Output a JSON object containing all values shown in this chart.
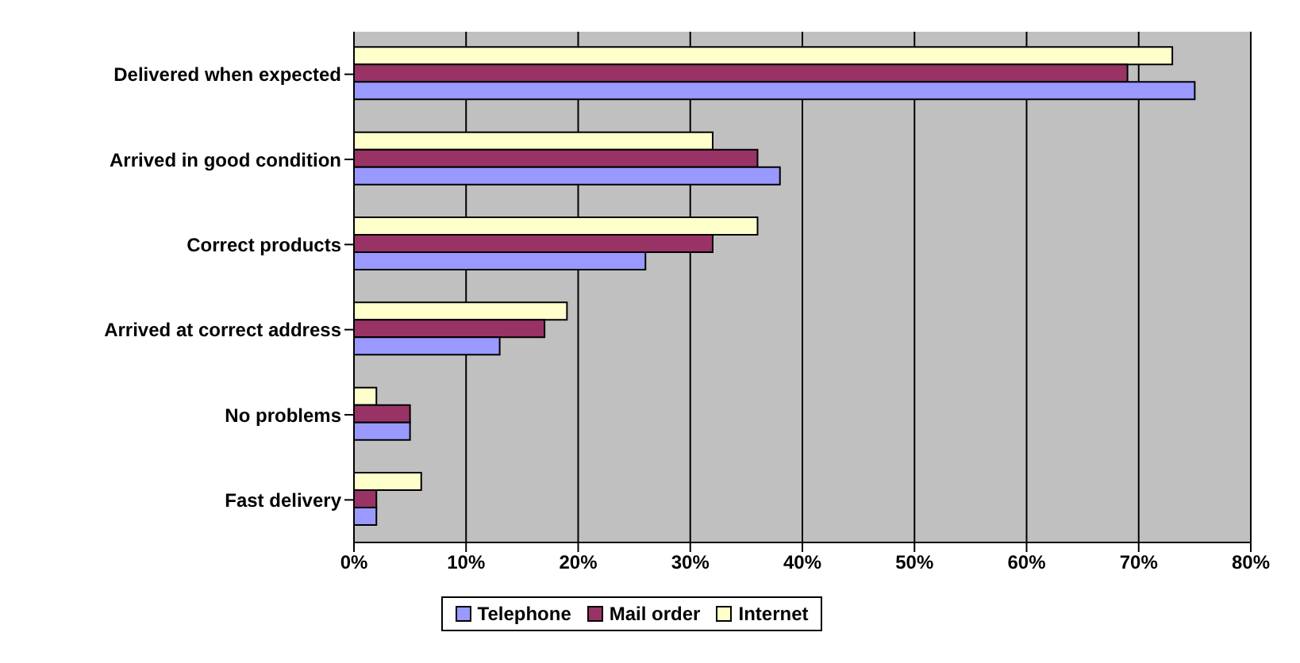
{
  "chart_data": {
    "type": "bar",
    "orientation": "horizontal",
    "categories": [
      "Delivered when expected",
      "Arrived in good condition",
      "Correct products",
      "Arrived at correct address",
      "No problems",
      "Fast delivery"
    ],
    "series": [
      {
        "name": "Telephone",
        "color": "#9999ff",
        "values": [
          75,
          38,
          26,
          13,
          5,
          2
        ]
      },
      {
        "name": "Mail order",
        "color": "#993366",
        "values": [
          69,
          36,
          32,
          17,
          5,
          2
        ]
      },
      {
        "name": "Internet",
        "color": "#ffffcc",
        "values": [
          73,
          32,
          36,
          19,
          2,
          6
        ]
      }
    ],
    "xlim": [
      0,
      80
    ],
    "xticks": [
      {
        "value": 0,
        "label": "0%"
      },
      {
        "value": 10,
        "label": "10%"
      },
      {
        "value": 20,
        "label": "20%"
      },
      {
        "value": 30,
        "label": "30%"
      },
      {
        "value": 40,
        "label": "40%"
      },
      {
        "value": 50,
        "label": "50%"
      },
      {
        "value": 60,
        "label": "60%"
      },
      {
        "value": 70,
        "label": "70%"
      },
      {
        "value": 80,
        "label": "80%"
      }
    ],
    "grid": "x",
    "legend": "bottom"
  }
}
